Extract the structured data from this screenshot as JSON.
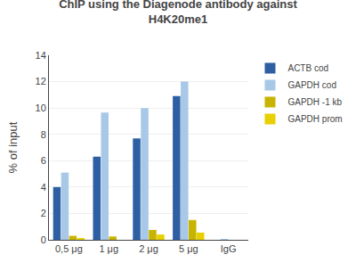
{
  "chart_data": {
    "type": "bar",
    "title": "ChIP using the Diagenode antibody against\nH4K20me1",
    "ylabel": "% of input",
    "categories": [
      "0,5 μg",
      "1 μg",
      "2 μg",
      "5 μg",
      "IgG"
    ],
    "series": [
      {
        "name": "ACTB cod",
        "color": "#2E5FA3",
        "values": [
          4.0,
          6.3,
          7.7,
          10.9,
          0.0
        ]
      },
      {
        "name": "GAPDH cod",
        "color": "#A8C8E8",
        "values": [
          5.1,
          9.65,
          10.0,
          12.0,
          0.05
        ]
      },
      {
        "name": "GAPDH -1 kb",
        "color": "#C8B400",
        "values": [
          0.3,
          0.25,
          0.75,
          1.5,
          0.0
        ]
      },
      {
        "name": "GAPDH prom",
        "color": "#E8D000",
        "values": [
          0.1,
          0.0,
          0.4,
          0.55,
          0.0
        ]
      }
    ],
    "ylim": [
      0,
      14
    ],
    "yticks": [
      0,
      2,
      4,
      6,
      8,
      10,
      12,
      14
    ],
    "grid": true,
    "legend": "upper right"
  }
}
